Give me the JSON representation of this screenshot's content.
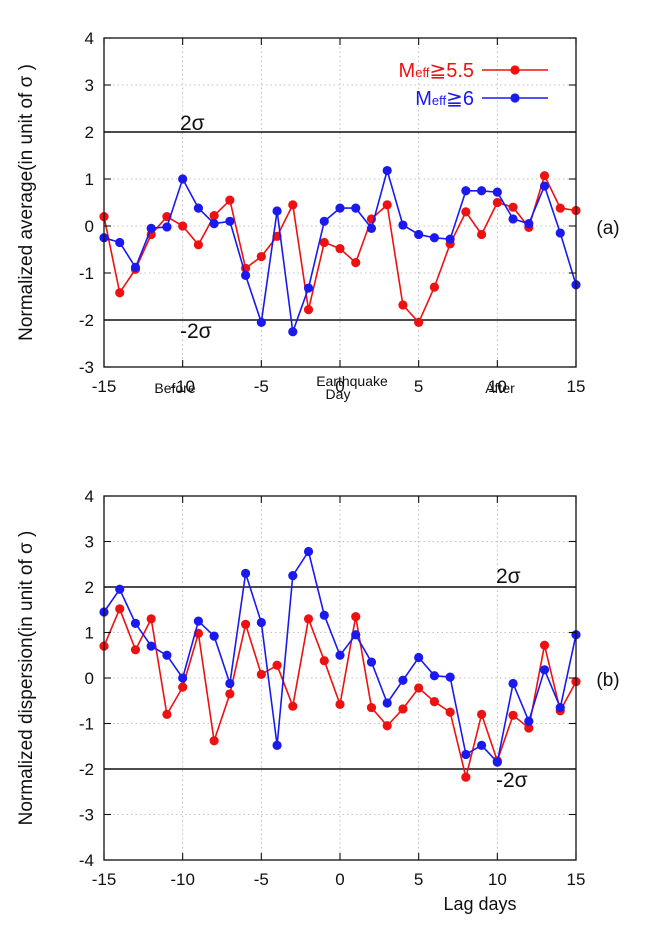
{
  "chart_data": [
    {
      "type": "line",
      "panel_label": "(a)",
      "ylabel": "Normalized average(in unit of  σ )",
      "xlabel": "",
      "xlim": [
        -15,
        15
      ],
      "ylim": [
        -3,
        4
      ],
      "xticks": [
        "-15",
        "-10",
        "-5",
        "0",
        "5",
        "10",
        "15"
      ],
      "yticks": [
        "-3",
        "-2",
        "-1",
        "0",
        "1",
        "2",
        "3",
        "4"
      ],
      "grid": true,
      "legend_position": "top-right",
      "legend": [
        {
          "base": "M",
          "sub": "eff",
          "tail": "≧5.5"
        },
        {
          "base": "M",
          "sub": "eff",
          "tail": "≧6"
        }
      ],
      "period_labels": {
        "before": "Before",
        "eq_line1": "Earthquake",
        "eq_line2": "Day",
        "after": "After"
      },
      "reference_lines": [
        {
          "y": 2,
          "label": "2σ"
        },
        {
          "y": -2,
          "label": "-2σ"
        }
      ],
      "x": [
        -15,
        -14,
        -13,
        -12,
        -11,
        -10,
        -9,
        -8,
        -7,
        -6,
        -5,
        -4,
        -3,
        -2,
        -1,
        0,
        1,
        2,
        3,
        4,
        5,
        6,
        7,
        8,
        9,
        10,
        11,
        12,
        13,
        14,
        15
      ],
      "series": [
        {
          "name": "Meff≧5.5",
          "color": "#ee1111",
          "values": [
            0.2,
            -1.42,
            -0.92,
            -0.18,
            0.2,
            0.0,
            -0.4,
            0.22,
            0.55,
            -0.9,
            -0.65,
            -0.22,
            0.45,
            -1.78,
            -0.35,
            -0.48,
            -0.78,
            0.15,
            0.45,
            -1.68,
            -2.05,
            -1.3,
            -0.38,
            0.3,
            -0.18,
            0.5,
            0.4,
            -0.03,
            1.07,
            0.38,
            0.33
          ]
        },
        {
          "name": "Meff≧6",
          "color": "#1a1aee",
          "values": [
            -0.25,
            -0.35,
            -0.88,
            -0.05,
            -0.02,
            1.0,
            0.38,
            0.05,
            0.1,
            -1.05,
            -2.05,
            0.32,
            -2.25,
            -1.32,
            0.1,
            0.38,
            0.38,
            -0.05,
            1.18,
            0.02,
            -0.18,
            -0.25,
            -0.28,
            0.75,
            0.75,
            0.72,
            0.15,
            0.05,
            0.85,
            -0.15,
            -1.25
          ]
        }
      ]
    },
    {
      "type": "line",
      "panel_label": "(b)",
      "ylabel": "Normalized dispersion(in unit of  σ )",
      "xlabel": "Lag days",
      "xlim": [
        -15,
        15
      ],
      "ylim": [
        -4,
        4
      ],
      "xticks": [
        "-15",
        "-10",
        "-5",
        "0",
        "5",
        "10",
        "15"
      ],
      "yticks": [
        "-4",
        "-3",
        "-2",
        "-1",
        "0",
        "1",
        "2",
        "3",
        "4"
      ],
      "grid": true,
      "reference_lines": [
        {
          "y": 2,
          "label": "2σ"
        },
        {
          "y": -2,
          "label": "-2σ"
        }
      ],
      "x": [
        -15,
        -14,
        -13,
        -12,
        -11,
        -10,
        -9,
        -8,
        -7,
        -6,
        -5,
        -4,
        -3,
        -2,
        -1,
        0,
        1,
        2,
        3,
        4,
        5,
        6,
        7,
        8,
        9,
        10,
        11,
        12,
        13,
        14,
        15
      ],
      "series": [
        {
          "name": "Meff≧5.5",
          "color": "#ee1111",
          "values": [
            0.7,
            1.52,
            0.62,
            1.3,
            -0.8,
            -0.2,
            0.98,
            -1.38,
            -0.35,
            1.18,
            0.08,
            0.28,
            -0.62,
            1.3,
            0.38,
            -0.58,
            1.35,
            -0.65,
            -1.05,
            -0.68,
            -0.22,
            -0.52,
            -0.75,
            -2.18,
            -0.8,
            -1.82,
            -0.82,
            -1.1,
            0.72,
            -0.72,
            -0.08
          ]
        },
        {
          "name": "Meff≧6",
          "color": "#1a1aee",
          "values": [
            1.45,
            1.95,
            1.2,
            0.7,
            0.5,
            0.0,
            1.25,
            0.92,
            -0.12,
            2.3,
            1.22,
            -1.48,
            2.25,
            2.78,
            1.38,
            0.5,
            0.95,
            0.35,
            -0.55,
            -0.05,
            0.45,
            0.05,
            0.02,
            -1.68,
            -1.48,
            -1.85,
            -0.12,
            -0.95,
            0.18,
            -0.65,
            0.95
          ]
        }
      ]
    }
  ]
}
